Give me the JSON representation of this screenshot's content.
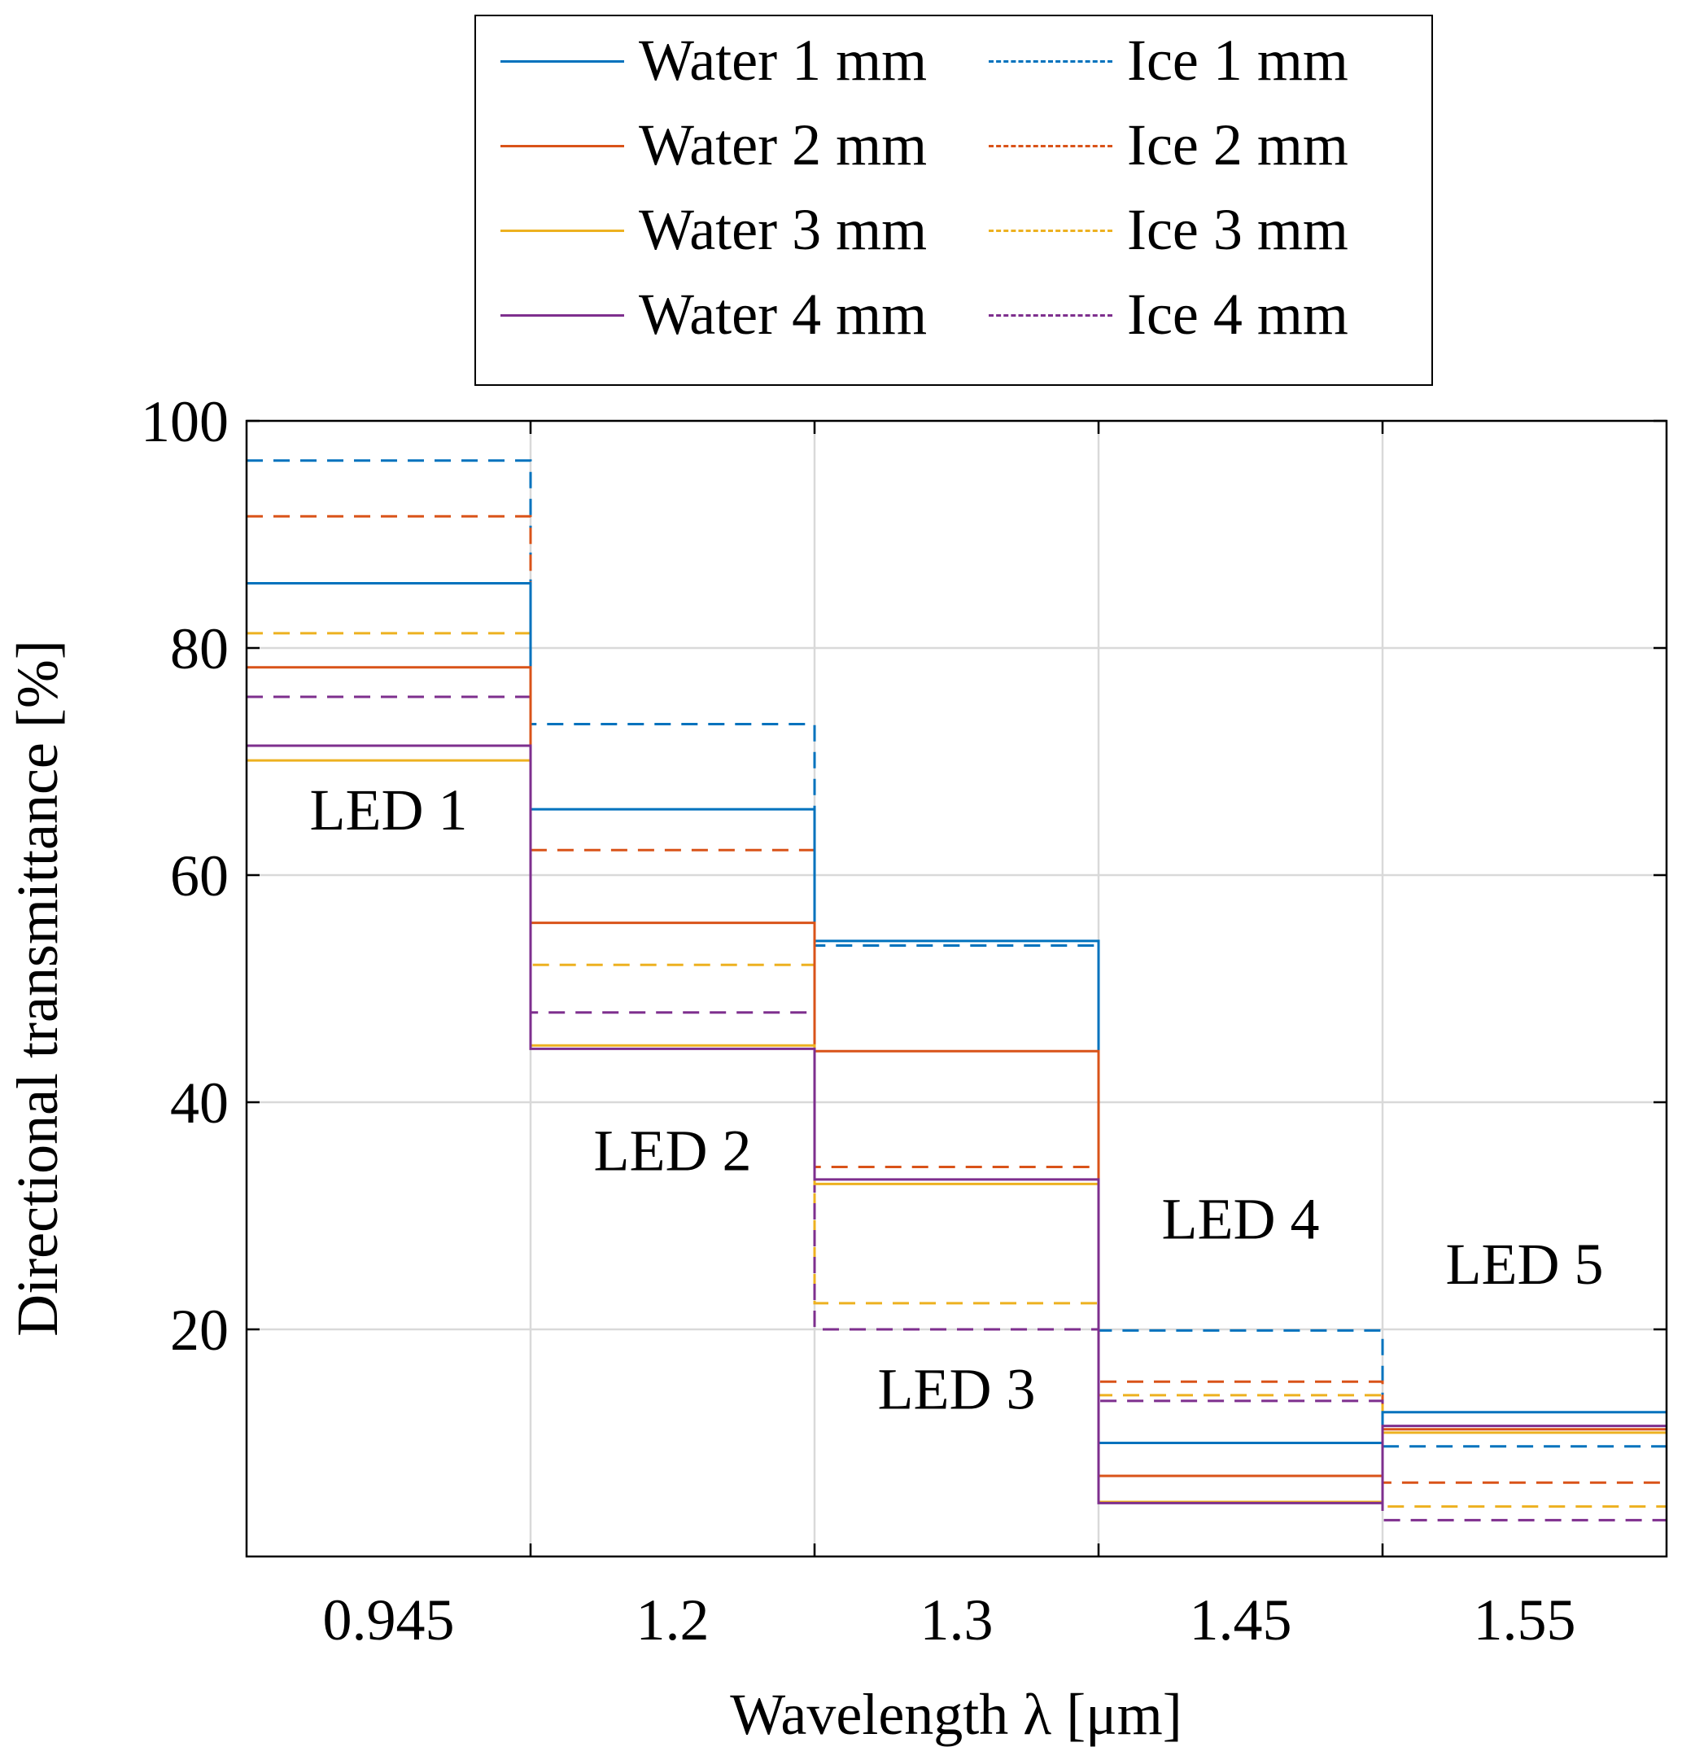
{
  "chart_data": {
    "type": "line",
    "style": "stairs",
    "title": "",
    "xlabel": "Wavelength λ [μm]",
    "ylabel": "Directional transmittance [%]",
    "categories": [
      "0.945",
      "1.2",
      "1.3",
      "1.45",
      "1.55"
    ],
    "ylim": [
      0,
      100
    ],
    "yticks": [
      "20",
      "40",
      "60",
      "80",
      "100"
    ],
    "grid": true,
    "legend_position": "top-center, outside plot",
    "series": [
      {
        "name": "Water 1 mm",
        "style": "solid",
        "color": "#0072BD",
        "values": [
          85.7,
          65.8,
          54.2,
          10.0,
          12.7
        ]
      },
      {
        "name": "Water 2 mm",
        "style": "solid",
        "color": "#D95319",
        "values": [
          78.3,
          55.8,
          44.5,
          7.1,
          11.2
        ]
      },
      {
        "name": "Water 3 mm",
        "style": "solid",
        "color": "#EDB120",
        "values": [
          70.1,
          45.0,
          32.8,
          4.8,
          10.9
        ]
      },
      {
        "name": "Water 4 mm",
        "style": "solid",
        "color": "#7E2F8E",
        "values": [
          71.4,
          44.7,
          33.2,
          4.7,
          11.5
        ]
      },
      {
        "name": "Ice 1 mm",
        "style": "dashed",
        "color": "#0072BD",
        "values": [
          96.5,
          73.3,
          53.8,
          19.9,
          9.7
        ]
      },
      {
        "name": "Ice 2 mm",
        "style": "dashed",
        "color": "#D95319",
        "values": [
          91.6,
          62.2,
          34.3,
          15.4,
          6.5
        ]
      },
      {
        "name": "Ice 3 mm",
        "style": "dashed",
        "color": "#EDB120",
        "values": [
          81.3,
          52.1,
          22.3,
          14.2,
          4.4
        ]
      },
      {
        "name": "Ice 4 mm",
        "style": "dashed",
        "color": "#7E2F8E",
        "values": [
          75.7,
          47.9,
          20.0,
          13.7,
          3.2
        ]
      }
    ],
    "annotations": [
      {
        "text": "LED 1",
        "category": "0.945",
        "y": 64
      },
      {
        "text": "LED 2",
        "category": "1.2",
        "y": 34
      },
      {
        "text": "LED 3",
        "category": "1.3",
        "y": 13
      },
      {
        "text": "LED 4",
        "category": "1.45",
        "y": 28
      },
      {
        "text": "LED 5",
        "category": "1.55",
        "y": 24
      }
    ]
  }
}
